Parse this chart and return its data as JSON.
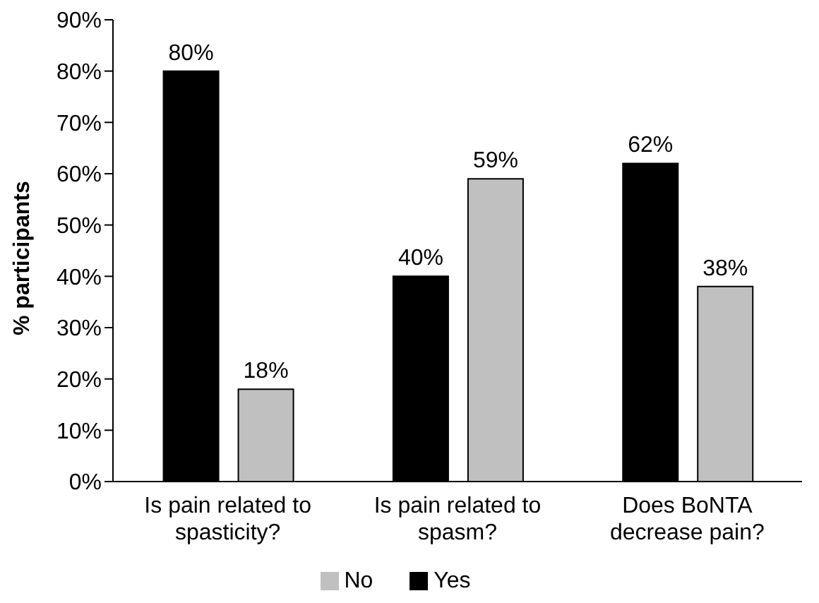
{
  "chart_data": {
    "type": "bar",
    "ylabel": "% participants",
    "categories": [
      "Is pain related to spasticity?",
      "Is pain related to spasm?",
      "Does BoNTA decrease pain?"
    ],
    "series": [
      {
        "name": "Yes",
        "color": "#000000",
        "values": [
          80,
          40,
          62
        ],
        "value_labels": [
          "80%",
          "40%",
          "62%"
        ]
      },
      {
        "name": "No",
        "color": "#c0c0c0",
        "values": [
          18,
          59,
          38
        ],
        "value_labels": [
          "18%",
          "59%",
          "38%"
        ]
      }
    ],
    "ylim": [
      0,
      90
    ],
    "yticks": [
      {
        "value": 0,
        "label": "0%"
      },
      {
        "value": 10,
        "label": "10%"
      },
      {
        "value": 20,
        "label": "20%"
      },
      {
        "value": 30,
        "label": "30%"
      },
      {
        "value": 40,
        "label": "40%"
      },
      {
        "value": 50,
        "label": "50%"
      },
      {
        "value": 60,
        "label": "60%"
      },
      {
        "value": 70,
        "label": "70%"
      },
      {
        "value": 80,
        "label": "80%"
      },
      {
        "value": 90,
        "label": "90%"
      }
    ],
    "grid": false,
    "legend": "bottom"
  }
}
